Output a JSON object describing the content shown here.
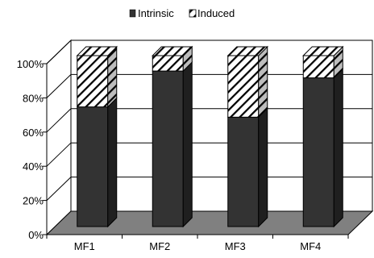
{
  "chart_data": {
    "type": "bar",
    "stacked": true,
    "stacked_to": "100%",
    "three_d": true,
    "title": "",
    "xlabel": "",
    "ylabel": "",
    "categories": [
      "MF1",
      "MF2",
      "MF3",
      "MF4"
    ],
    "series": [
      {
        "name": "Intrinsic",
        "values": [
          70,
          91,
          64,
          87
        ],
        "color": "#333333",
        "pattern": "solid"
      },
      {
        "name": "Induced",
        "values": [
          30,
          9,
          36,
          13
        ],
        "color": "#ffffff",
        "pattern": "diagonal-hatch"
      }
    ],
    "ylim": [
      0,
      100
    ],
    "yticks": [
      "0%",
      "20%",
      "40%",
      "60%",
      "80%",
      "100%"
    ],
    "grid": true,
    "legend_position": "top",
    "floor_color": "#808080"
  }
}
